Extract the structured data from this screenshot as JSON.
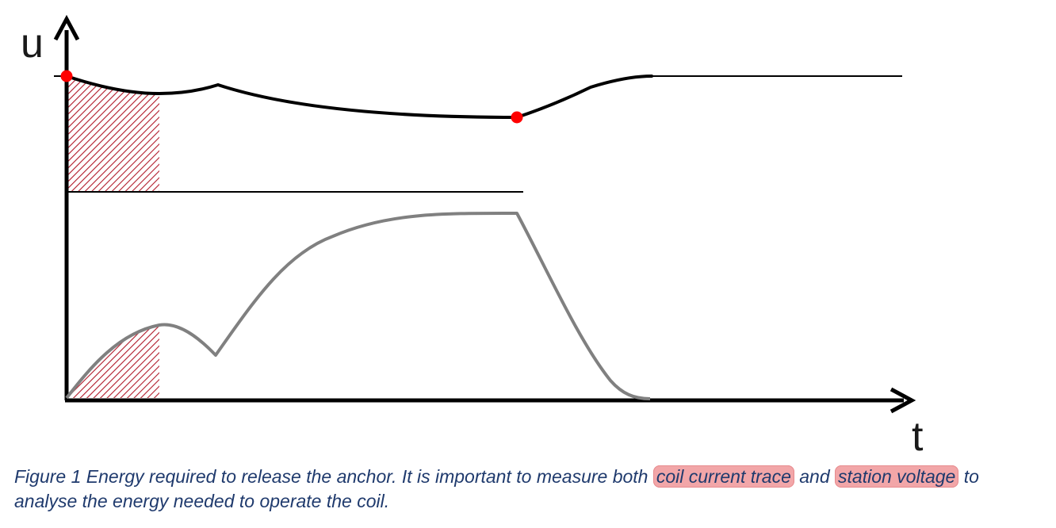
{
  "figure": {
    "y_axis_label": "u",
    "x_axis_label": "t",
    "colors": {
      "voltage_curve": "#000000",
      "current_curve": "#808080",
      "hatch": "#b11a2a",
      "markers": "#ff0000",
      "highlight": "#f2a6a8",
      "caption_text": "#1f3a6d"
    }
  },
  "caption": {
    "part1": "Figure 1 Energy required to release the anchor. It is important to measure both",
    "highlight1": "coil current trace",
    "part2": "and",
    "highlight2": "station voltage",
    "part3": "to analyse the energy needed to operate the coil."
  }
}
